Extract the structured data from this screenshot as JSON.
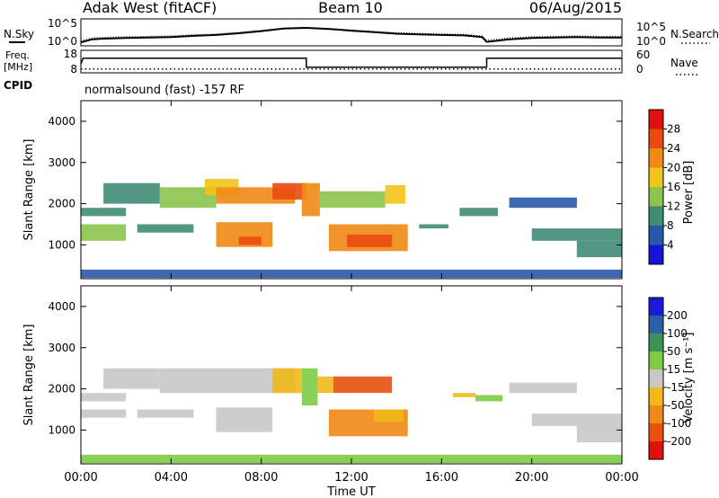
{
  "header": {
    "station": "Adak West (fitACF)",
    "beam": "Beam 10",
    "date": "06/Aug/2015"
  },
  "noise_panel": {
    "left_label": "N.Sky",
    "right_label": "N.Search",
    "left_ticks": [
      "10^5",
      "10^0"
    ],
    "right_ticks": [
      "10^5",
      "10^0"
    ]
  },
  "freq_panel": {
    "left_label_1": "Freq.",
    "left_label_2": "[MHz]",
    "right_label": "Nave",
    "left_ticks": [
      "18",
      "8"
    ],
    "right_ticks": [
      "60",
      "0"
    ]
  },
  "cpid": {
    "label": "CPID",
    "text": "normalsound (fast) -157 RF"
  },
  "xaxis": {
    "label": "Time UT",
    "ticks": [
      "00:00",
      "04:00",
      "08:00",
      "12:00",
      "16:00",
      "20:00",
      "00:00"
    ]
  },
  "yaxis": {
    "label": "Slant Range [km]",
    "ticks": [
      "1000",
      "2000",
      "3000",
      "4000"
    ]
  },
  "power_bar": {
    "label": "Power [dB]",
    "ticks": [
      "4",
      "8",
      "12",
      "16",
      "20",
      "24",
      "28"
    ],
    "colors": [
      "#1414d6",
      "#2a58a8",
      "#3e8c76",
      "#8cc44c",
      "#f0c418",
      "#f08a14",
      "#e84a10",
      "#e01010"
    ]
  },
  "velocity_bar": {
    "label": "Velocity [m s⁻¹]",
    "ticks": [
      "200",
      "100",
      "50",
      "15",
      "-15",
      "-50",
      "-100",
      "-200"
    ],
    "colors": [
      "#1a1ad8",
      "#2b5fa8",
      "#3f8f58",
      "#7ccc44",
      "#c8c8c8",
      "#f0b818",
      "#f08a14",
      "#e85010",
      "#e01010"
    ]
  },
  "chart_data": [
    {
      "type": "line",
      "title": "N.Sky / N.Search",
      "x_unit": "hours UT",
      "xlim": [
        0,
        24
      ],
      "series": [
        {
          "name": "N.Sky",
          "x": [
            0,
            0.5,
            1,
            2,
            3,
            4,
            5,
            6,
            7,
            8,
            9,
            10,
            11,
            12,
            13,
            14,
            15,
            16,
            17,
            17.8,
            18,
            19,
            20,
            21,
            22,
            23,
            24
          ],
          "y": [
            0.08,
            0.22,
            0.25,
            0.28,
            0.3,
            0.32,
            0.38,
            0.42,
            0.5,
            0.6,
            0.72,
            0.75,
            0.7,
            0.62,
            0.55,
            0.48,
            0.45,
            0.42,
            0.4,
            0.32,
            0.1,
            0.22,
            0.28,
            0.3,
            0.32,
            0.3,
            0.3
          ]
        }
      ]
    },
    {
      "type": "line",
      "title": "Freq. / Nave",
      "x_unit": "hours UT",
      "xlim": [
        0,
        24
      ],
      "series": [
        {
          "name": "Freq.",
          "x": [
            0,
            0.1,
            10.0,
            10.0,
            18.0,
            18.0,
            24
          ],
          "y": [
            12,
            14.5,
            14.5,
            10.5,
            10.5,
            14.5,
            14.5
          ]
        },
        {
          "name": "Nave",
          "x": [
            0,
            24
          ],
          "y": [
            10,
            10
          ]
        }
      ]
    },
    {
      "type": "heatmap",
      "title": "Power [dB]",
      "x_unit": "hours UT",
      "y_unit": "km",
      "xlim": [
        0,
        24
      ],
      "ylim": [
        180,
        4500
      ],
      "regions": [
        {
          "x": [
            0.0,
            2.0
          ],
          "y": [
            1100,
            1500
          ],
          "value": 12
        },
        {
          "x": [
            0.0,
            2.0
          ],
          "y": [
            1700,
            1900
          ],
          "value": 8
        },
        {
          "x": [
            1.0,
            3.5
          ],
          "y": [
            2000,
            2500
          ],
          "value": 10
        },
        {
          "x": [
            3.5,
            6.0
          ],
          "y": [
            1900,
            2400
          ],
          "value": 14
        },
        {
          "x": [
            5.5,
            7.0
          ],
          "y": [
            2200,
            2600
          ],
          "value": 16
        },
        {
          "x": [
            6.0,
            9.5
          ],
          "y": [
            2000,
            2400
          ],
          "value": 22
        },
        {
          "x": [
            8.5,
            10.0
          ],
          "y": [
            2100,
            2500
          ],
          "value": 24
        },
        {
          "x": [
            2.5,
            5.0
          ],
          "y": [
            1300,
            1500
          ],
          "value": 10
        },
        {
          "x": [
            6.0,
            8.5
          ],
          "y": [
            950,
            1550
          ],
          "value": 20
        },
        {
          "x": [
            7.0,
            8.0
          ],
          "y": [
            1000,
            1200
          ],
          "value": 26
        },
        {
          "x": [
            9.8,
            10.6
          ],
          "y": [
            1700,
            2500
          ],
          "value": 22
        },
        {
          "x": [
            10.6,
            13.5
          ],
          "y": [
            1900,
            2300
          ],
          "value": 12
        },
        {
          "x": [
            13.5,
            14.4
          ],
          "y": [
            2000,
            2450
          ],
          "value": 16
        },
        {
          "x": [
            11.0,
            14.5
          ],
          "y": [
            850,
            1500
          ],
          "value": 22
        },
        {
          "x": [
            11.8,
            13.8
          ],
          "y": [
            950,
            1250
          ],
          "value": 27
        },
        {
          "x": [
            15.0,
            16.3
          ],
          "y": [
            1400,
            1500
          ],
          "value": 8
        },
        {
          "x": [
            16.8,
            18.5
          ],
          "y": [
            1700,
            1900
          ],
          "value": 8
        },
        {
          "x": [
            19.0,
            22.0
          ],
          "y": [
            1900,
            2150
          ],
          "value": 6
        },
        {
          "x": [
            20.0,
            24.0
          ],
          "y": [
            1100,
            1400
          ],
          "value": 10
        },
        {
          "x": [
            22.0,
            24.0
          ],
          "y": [
            700,
            1100
          ],
          "value": 9
        },
        {
          "x": [
            0.0,
            24.0
          ],
          "y": [
            200,
            400
          ],
          "value": 6
        }
      ]
    },
    {
      "type": "heatmap",
      "title": "Velocity [m s⁻¹]",
      "x_unit": "hours UT",
      "y_unit": "km",
      "xlim": [
        0,
        24
      ],
      "ylim": [
        180,
        4500
      ],
      "regions": [
        {
          "x": [
            0.0,
            2.0
          ],
          "y": [
            1300,
            1500
          ],
          "value": 0
        },
        {
          "x": [
            0.0,
            2.0
          ],
          "y": [
            1700,
            1900
          ],
          "value": 0
        },
        {
          "x": [
            1.0,
            3.5
          ],
          "y": [
            2000,
            2500
          ],
          "value": 0
        },
        {
          "x": [
            3.5,
            9.5
          ],
          "y": [
            1900,
            2500
          ],
          "value": 0
        },
        {
          "x": [
            2.5,
            5.0
          ],
          "y": [
            1300,
            1500
          ],
          "value": 0
        },
        {
          "x": [
            6.0,
            8.5
          ],
          "y": [
            950,
            1550
          ],
          "value": 0
        },
        {
          "x": [
            8.5,
            9.8
          ],
          "y": [
            1900,
            2500
          ],
          "value": -30
        },
        {
          "x": [
            9.8,
            10.5
          ],
          "y": [
            1600,
            2500
          ],
          "value": 30
        },
        {
          "x": [
            10.5,
            11.2
          ],
          "y": [
            1900,
            2300
          ],
          "value": -30
        },
        {
          "x": [
            11.2,
            13.8
          ],
          "y": [
            1900,
            2300
          ],
          "value": -200
        },
        {
          "x": [
            11.0,
            14.5
          ],
          "y": [
            850,
            1500
          ],
          "value": -80
        },
        {
          "x": [
            13.0,
            14.3
          ],
          "y": [
            1200,
            1500
          ],
          "value": -30
        },
        {
          "x": [
            16.5,
            17.5
          ],
          "y": [
            1800,
            1900
          ],
          "value": -40
        },
        {
          "x": [
            17.5,
            18.7
          ],
          "y": [
            1700,
            1850
          ],
          "value": 30
        },
        {
          "x": [
            19.0,
            22.0
          ],
          "y": [
            1900,
            2150
          ],
          "value": 0
        },
        {
          "x": [
            20.0,
            24.0
          ],
          "y": [
            1100,
            1400
          ],
          "value": 0
        },
        {
          "x": [
            22.0,
            24.0
          ],
          "y": [
            700,
            1100
          ],
          "value": 0
        },
        {
          "x": [
            0.0,
            24.0
          ],
          "y": [
            200,
            400
          ],
          "value": 30
        }
      ]
    }
  ]
}
